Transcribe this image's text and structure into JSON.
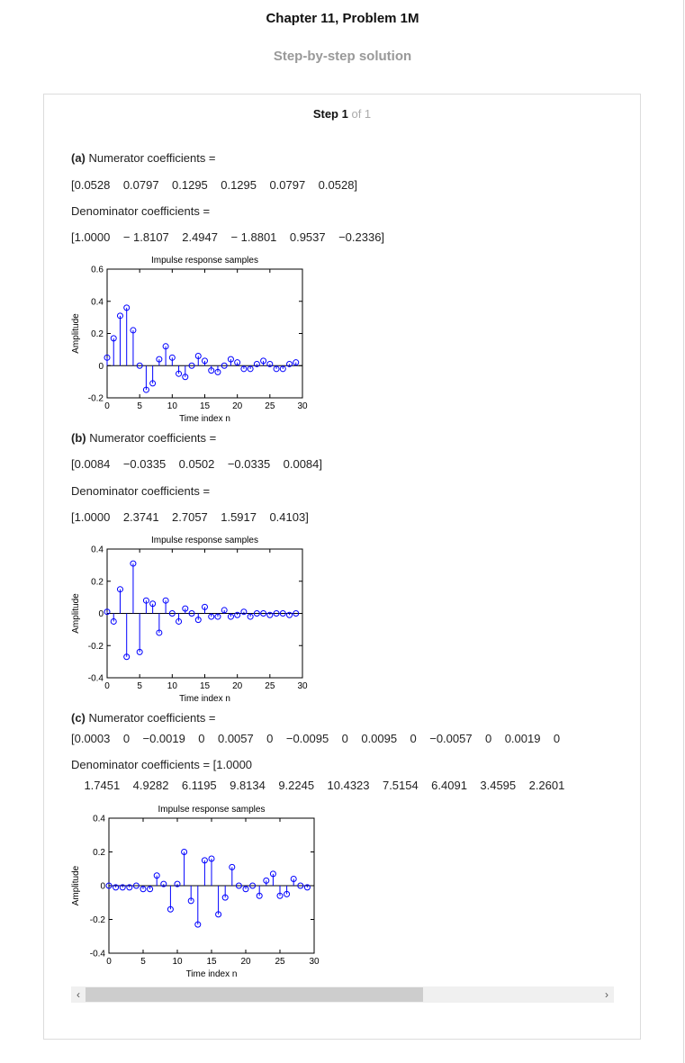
{
  "header": {
    "chapter_title": "Chapter 11, Problem 1M",
    "subtitle": "Step-by-step solution"
  },
  "step": {
    "label": "Step 1",
    "of": "of 1"
  },
  "parts": [
    {
      "letter": "(a)",
      "num_label": " Numerator coefficients =",
      "num_values": "[0.0528    0.0797    0.1295    0.1295    0.0797    0.0528]",
      "den_label": "Denominator coefficients =",
      "den_values": "[1.0000    − 1.8107    2.4947    − 1.8801    0.9537    −0.2336]"
    },
    {
      "letter": "(b)",
      "num_label": " Numerator coefficients =",
      "num_values": "[0.0084    −0.0335    0.0502    −0.0335    0.0084]",
      "den_label": "Denominator coefficients =",
      "den_values": "[1.0000    2.3741    2.7057    1.5917    0.4103]"
    },
    {
      "letter": "(c)",
      "num_label": " Numerator coefficients =",
      "num_values": "[0.0003    0    −0.0019    0    0.0057    0    −0.0095    0    0.0095    0    −0.0057    0    0.0019    0",
      "den_label": "Denominator coefficients = [1.0000",
      "den_values": "    1.7451    4.9282    6.1195    9.8134    9.2245    10.4323    7.5154    6.4091    3.4595    2.2601"
    }
  ],
  "chart_data": [
    {
      "type": "scatter",
      "style": "stem",
      "title": "Impulse response samples",
      "xlabel": "Time index n",
      "ylabel": "Amplitude",
      "xlim": [
        0,
        30
      ],
      "ylim": [
        -0.2,
        0.6
      ],
      "xticks": [
        0,
        5,
        10,
        15,
        20,
        25,
        30
      ],
      "yticks": [
        -0.2,
        0,
        0.2,
        0.4,
        0.6
      ],
      "ytick_labels": [
        "-0.2",
        "0",
        "0.2",
        "0.4",
        "0.6"
      ],
      "color": "#0000ff",
      "x": [
        0,
        1,
        2,
        3,
        4,
        5,
        6,
        7,
        8,
        9,
        10,
        11,
        12,
        13,
        14,
        15,
        16,
        17,
        18,
        19,
        20,
        21,
        22,
        23,
        24,
        25,
        26,
        27,
        28,
        29
      ],
      "y": [
        0.05,
        0.17,
        0.31,
        0.36,
        0.22,
        0.0,
        -0.15,
        -0.11,
        0.04,
        0.12,
        0.05,
        -0.05,
        -0.07,
        0.0,
        0.06,
        0.03,
        -0.03,
        -0.04,
        0.0,
        0.04,
        0.02,
        -0.02,
        -0.02,
        0.01,
        0.03,
        0.01,
        -0.02,
        -0.02,
        0.01,
        0.02
      ]
    },
    {
      "type": "scatter",
      "style": "stem",
      "title": "Impulse response samples",
      "xlabel": "Time index n",
      "ylabel": "Amplitude",
      "xlim": [
        0,
        30
      ],
      "ylim": [
        -0.4,
        0.4
      ],
      "xticks": [
        0,
        5,
        10,
        15,
        20,
        25,
        30
      ],
      "yticks": [
        -0.4,
        -0.2,
        0,
        0.2,
        0.4
      ],
      "ytick_labels": [
        "-0.4",
        "-0.2",
        "0",
        "0.2",
        "0.4"
      ],
      "color": "#0000ff",
      "x": [
        0,
        1,
        2,
        3,
        4,
        5,
        6,
        7,
        8,
        9,
        10,
        11,
        12,
        13,
        14,
        15,
        16,
        17,
        18,
        19,
        20,
        21,
        22,
        23,
        24,
        25,
        26,
        27,
        28,
        29
      ],
      "y": [
        0.01,
        -0.05,
        0.15,
        -0.27,
        0.31,
        -0.24,
        0.08,
        0.06,
        -0.12,
        0.08,
        0.0,
        -0.05,
        0.03,
        0.0,
        -0.04,
        0.04,
        -0.02,
        -0.02,
        0.02,
        -0.02,
        -0.01,
        0.01,
        -0.02,
        0.0,
        0.0,
        -0.01,
        0.0,
        0.0,
        -0.01,
        0.0
      ]
    },
    {
      "type": "scatter",
      "style": "stem",
      "title": "Impulse response samples",
      "xlabel": "Time index n",
      "ylabel": "Amplitude",
      "xlim": [
        0,
        30
      ],
      "ylim": [
        -0.4,
        0.4
      ],
      "xticks": [
        0,
        5,
        10,
        15,
        20,
        25,
        30
      ],
      "yticks": [
        -0.4,
        -0.2,
        0,
        0.2,
        0.4
      ],
      "ytick_labels": [
        "-0.4",
        "-0.2",
        "0",
        "0.2",
        "0.4"
      ],
      "color": "#0000ff",
      "x": [
        0,
        1,
        2,
        3,
        4,
        5,
        6,
        7,
        8,
        9,
        10,
        11,
        12,
        13,
        14,
        15,
        16,
        17,
        18,
        19,
        20,
        21,
        22,
        23,
        24,
        25,
        26,
        27,
        28,
        29
      ],
      "y": [
        0.0,
        -0.01,
        -0.01,
        -0.01,
        0.0,
        -0.02,
        -0.02,
        0.06,
        0.01,
        -0.14,
        0.01,
        0.2,
        -0.09,
        -0.23,
        0.15,
        0.16,
        -0.17,
        -0.07,
        0.11,
        0.0,
        -0.02,
        0.0,
        -0.06,
        0.03,
        0.07,
        -0.06,
        -0.05,
        0.04,
        0.0,
        -0.01
      ]
    }
  ],
  "scrollbar": {
    "left_arrow": "‹",
    "right_arrow": "›"
  }
}
